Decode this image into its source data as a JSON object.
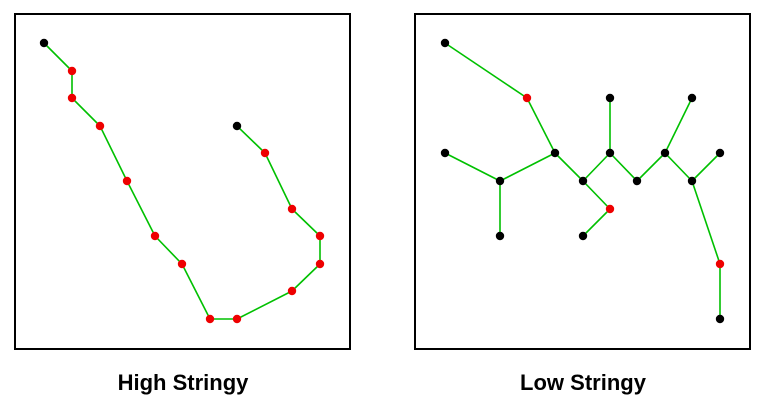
{
  "panels": [
    {
      "caption": "High Stringy",
      "nodes": [
        {
          "id": "a1",
          "kind": "endpoint"
        },
        {
          "id": "a2",
          "kind": "chain"
        },
        {
          "id": "a3",
          "kind": "chain"
        },
        {
          "id": "a4",
          "kind": "chain"
        },
        {
          "id": "a5",
          "kind": "chain"
        },
        {
          "id": "a6",
          "kind": "chain"
        },
        {
          "id": "a7",
          "kind": "chain"
        },
        {
          "id": "a8",
          "kind": "chain"
        },
        {
          "id": "a9",
          "kind": "chain"
        },
        {
          "id": "a10",
          "kind": "chain"
        },
        {
          "id": "a11",
          "kind": "chain"
        },
        {
          "id": "a12",
          "kind": "chain"
        },
        {
          "id": "a13",
          "kind": "chain"
        },
        {
          "id": "a14",
          "kind": "chain"
        },
        {
          "id": "a15",
          "kind": "endpoint"
        }
      ],
      "edges": [
        [
          "a1",
          "a2"
        ],
        [
          "a2",
          "a3"
        ],
        [
          "a3",
          "a4"
        ],
        [
          "a4",
          "a5"
        ],
        [
          "a5",
          "a6"
        ],
        [
          "a6",
          "a7"
        ],
        [
          "a7",
          "a8"
        ],
        [
          "a8",
          "a9"
        ],
        [
          "a9",
          "a10"
        ],
        [
          "a10",
          "a11"
        ],
        [
          "a11",
          "a12"
        ],
        [
          "a12",
          "a13"
        ],
        [
          "a13",
          "a14"
        ],
        [
          "a14",
          "a15"
        ]
      ]
    },
    {
      "caption": "Low Stringy",
      "nodes": [
        {
          "id": "b1",
          "kind": "endpoint"
        },
        {
          "id": "b2",
          "kind": "chain"
        },
        {
          "id": "b3",
          "kind": "endpoint"
        },
        {
          "id": "b4",
          "kind": "endpoint"
        },
        {
          "id": "b5",
          "kind": "endpoint"
        },
        {
          "id": "b6",
          "kind": "endpoint"
        },
        {
          "id": "b7",
          "kind": "endpoint"
        },
        {
          "id": "b8",
          "kind": "endpoint"
        },
        {
          "id": "b9",
          "kind": "endpoint"
        },
        {
          "id": "b10",
          "kind": "endpoint"
        },
        {
          "id": "b11",
          "kind": "endpoint"
        },
        {
          "id": "b12",
          "kind": "endpoint"
        },
        {
          "id": "b13",
          "kind": "endpoint"
        },
        {
          "id": "b14",
          "kind": "chain"
        },
        {
          "id": "b15",
          "kind": "endpoint"
        },
        {
          "id": "b16",
          "kind": "chain"
        },
        {
          "id": "b17",
          "kind": "endpoint"
        }
      ],
      "edges": [
        [
          "b1",
          "b2"
        ],
        [
          "b2",
          "b7"
        ],
        [
          "b5",
          "b6"
        ],
        [
          "b6",
          "b7"
        ],
        [
          "b6",
          "b13"
        ],
        [
          "b7",
          "b8"
        ],
        [
          "b8",
          "b9"
        ],
        [
          "b9",
          "b3"
        ],
        [
          "b8",
          "b14"
        ],
        [
          "b14",
          "b15"
        ],
        [
          "b9",
          "b10"
        ],
        [
          "b10",
          "b11"
        ],
        [
          "b11",
          "b4"
        ],
        [
          "b11",
          "b12"
        ],
        [
          "b12",
          "b16"
        ],
        [
          "b16",
          "b17"
        ]
      ]
    }
  ],
  "colors": {
    "edge": "#00c000",
    "chain_node": "#ee0000",
    "endpoint_node": "#000000",
    "border": "#000000"
  }
}
